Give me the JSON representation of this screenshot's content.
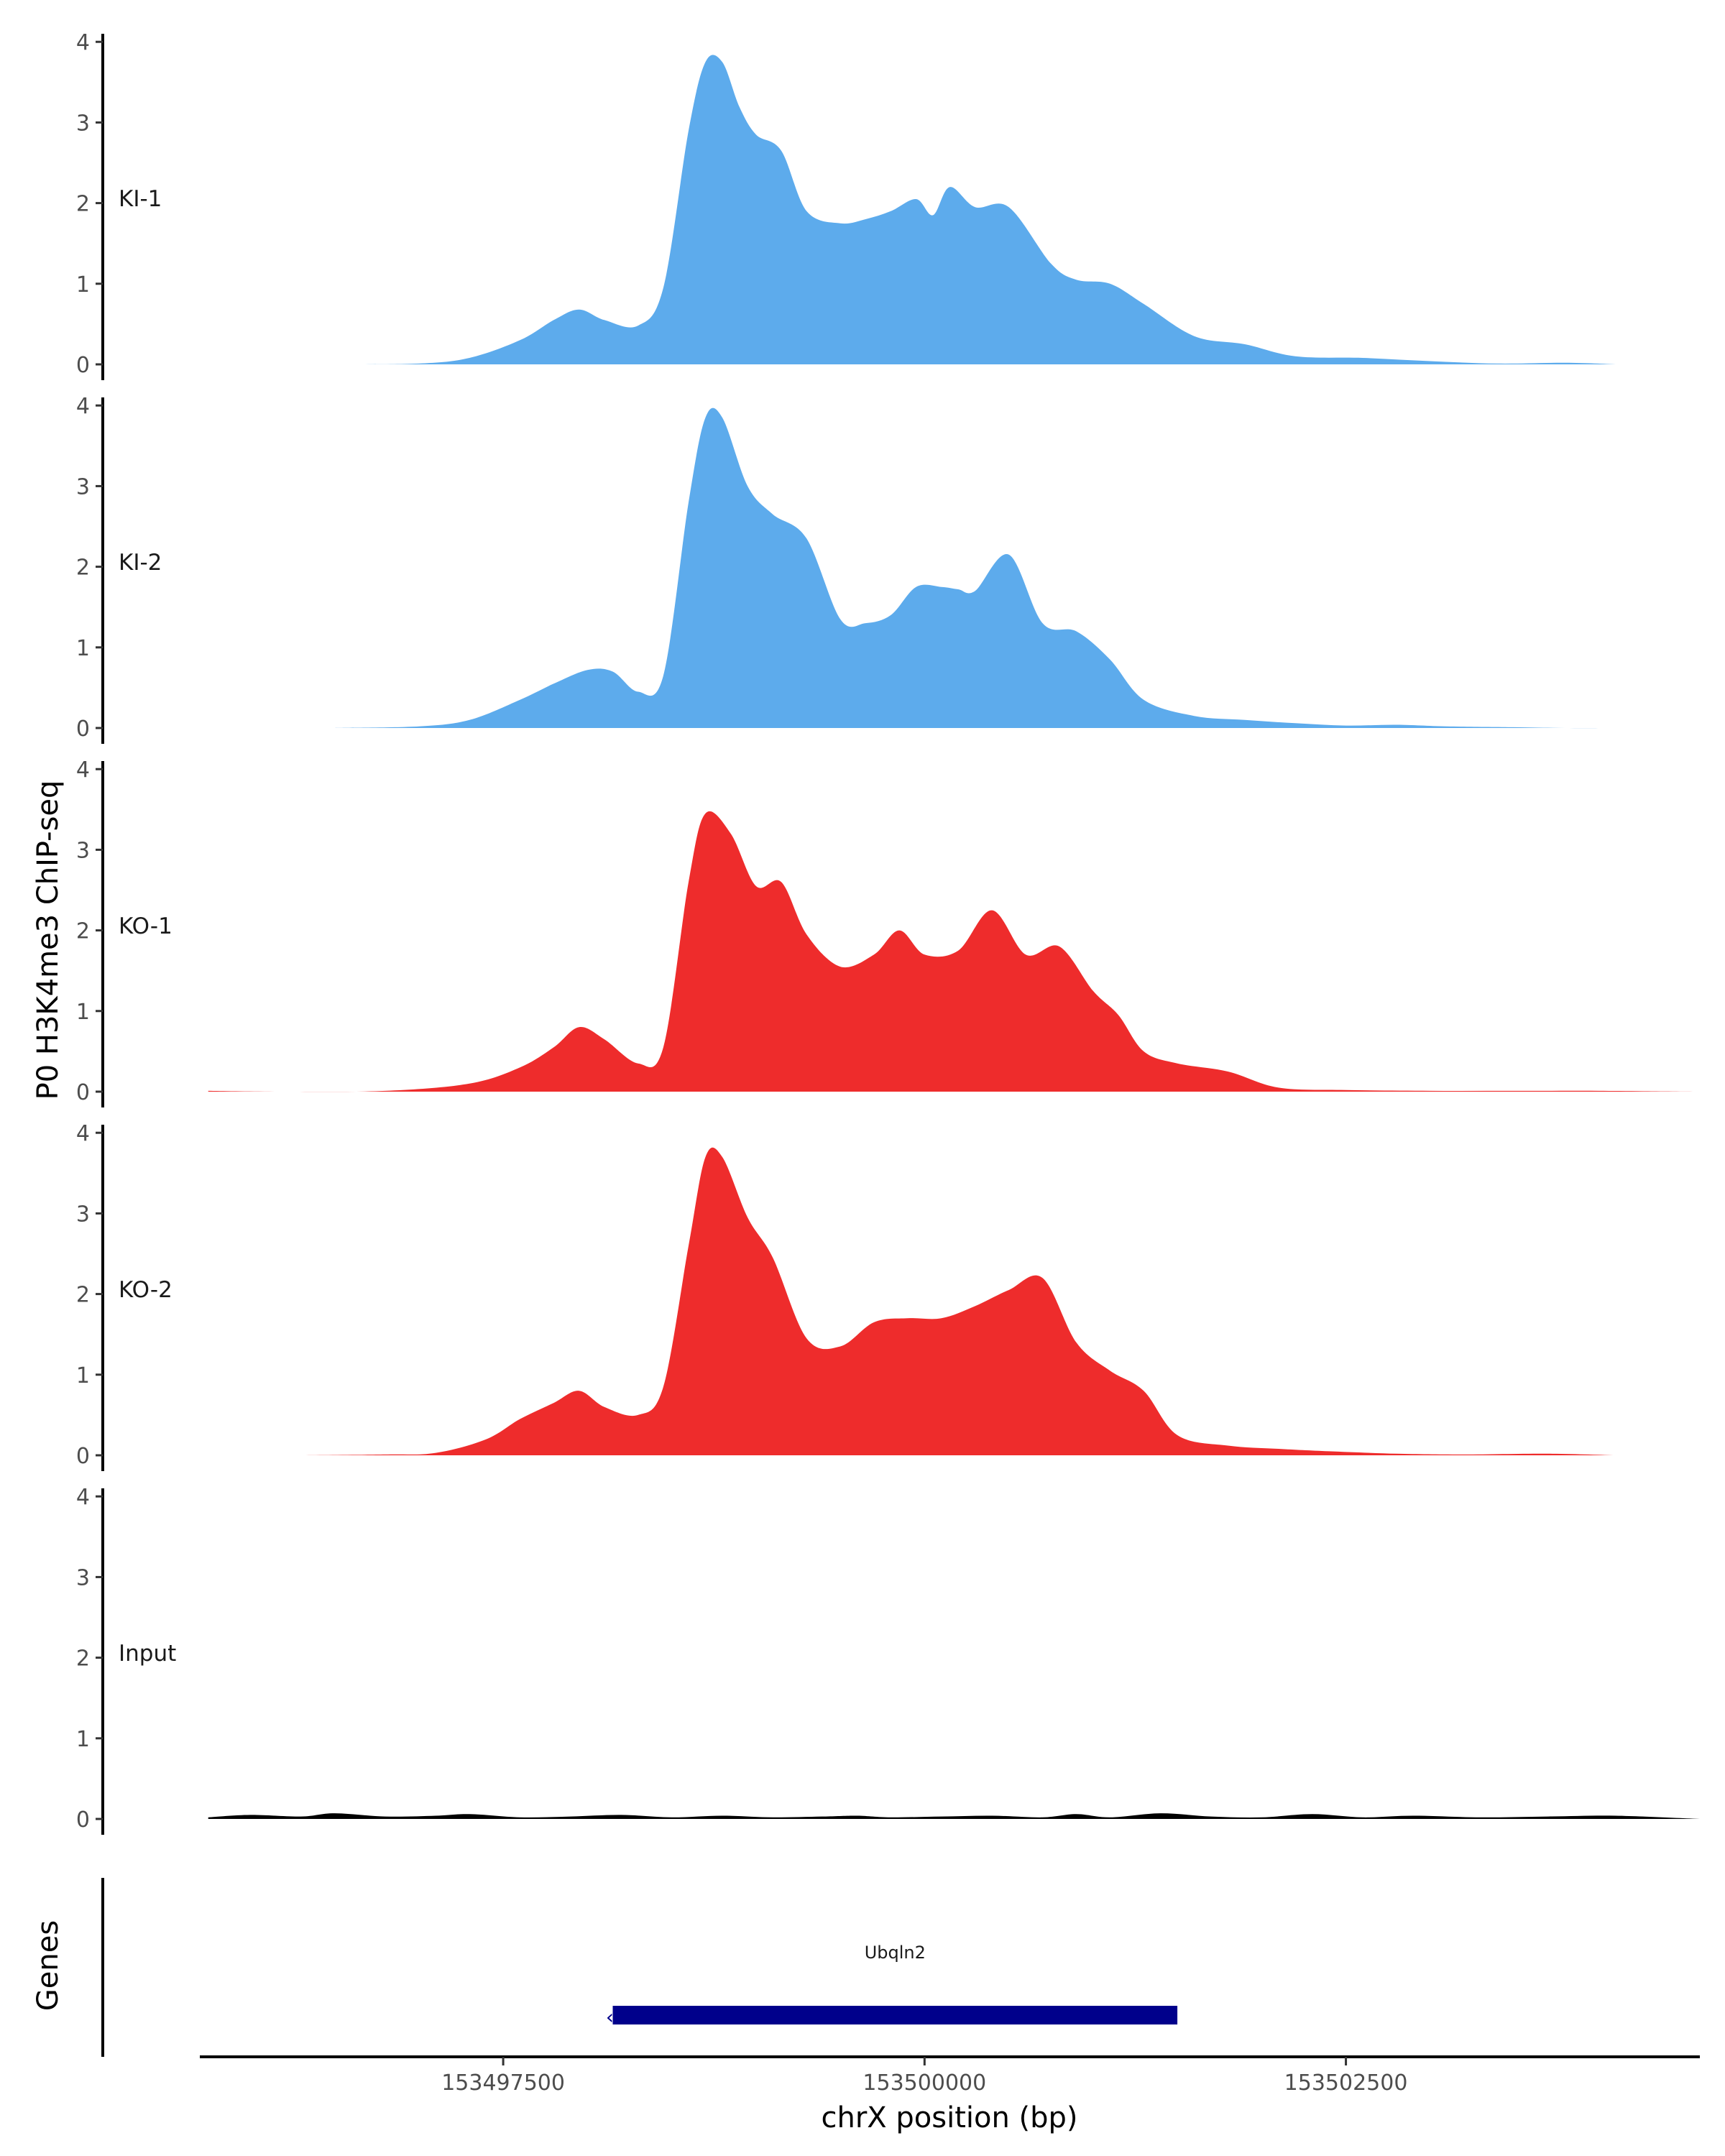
{
  "chart_data": {
    "type": "area",
    "title": "",
    "ylabel": "P0 H3K4me3 ChIP-seq",
    "xlabel": "chrX position (bp)",
    "xlim": [
      153495700,
      153504600
    ],
    "ylim": [
      0,
      4.1
    ],
    "y_ticks": [
      0,
      1,
      2,
      3,
      4
    ],
    "x_ticks": [
      {
        "value": 153497500,
        "label": "153497500"
      },
      {
        "value": 153500000,
        "label": "153500000"
      },
      {
        "value": 153502500,
        "label": "153502500"
      }
    ],
    "colors": {
      "KI": "#5DABEC",
      "KO": "#EE2C2C",
      "Input": "#000000",
      "gene": "#00008B"
    },
    "tracks": [
      {
        "name": "KI-1",
        "color": "#5DABEC",
        "x": [
          153496500,
          153497000,
          153497300,
          153497600,
          153497800,
          153497950,
          153498100,
          153498300,
          153498450,
          153498600,
          153498700,
          153498800,
          153498900,
          153499000,
          153499150,
          153499300,
          153499500,
          153499650,
          153499800,
          153499950,
          153500050,
          153500150,
          153500300,
          153500500,
          153500750,
          153500900,
          153501100,
          153501300,
          153501600,
          153501900,
          153502200,
          153502600,
          153503000,
          153503400,
          153503800,
          153504100
        ],
        "values": [
          0.0,
          0.01,
          0.08,
          0.3,
          0.55,
          0.68,
          0.55,
          0.48,
          0.95,
          2.9,
          3.75,
          3.75,
          3.2,
          2.85,
          2.65,
          1.9,
          1.75,
          1.8,
          1.9,
          2.05,
          1.85,
          2.2,
          1.95,
          1.95,
          1.25,
          1.05,
          1.0,
          0.75,
          0.35,
          0.25,
          0.1,
          0.08,
          0.04,
          0.01,
          0.02,
          0.0
        ]
      },
      {
        "name": "KI-2",
        "color": "#5DABEC",
        "x": [
          153496500,
          153497000,
          153497300,
          153497600,
          153497800,
          153498000,
          153498150,
          153498300,
          153498450,
          153498600,
          153498700,
          153498800,
          153498950,
          153499100,
          153499300,
          153499500,
          153499650,
          153499800,
          153499950,
          153500100,
          153500200,
          153500300,
          153500500,
          153500700,
          153500900,
          153501100,
          153501300,
          153501600,
          153501900,
          153502200,
          153502500,
          153502800,
          153503100,
          153503500,
          153503800,
          153504100
        ],
        "values": [
          0.0,
          0.02,
          0.1,
          0.35,
          0.55,
          0.72,
          0.7,
          0.45,
          0.65,
          2.8,
          3.85,
          3.85,
          3.0,
          2.65,
          2.35,
          1.35,
          1.3,
          1.4,
          1.75,
          1.75,
          1.72,
          1.7,
          2.15,
          1.3,
          1.2,
          0.85,
          0.35,
          0.15,
          0.1,
          0.06,
          0.03,
          0.04,
          0.02,
          0.01,
          0.0,
          0.0
        ]
      },
      {
        "name": "KO-1",
        "color": "#EE2C2C",
        "x": [
          153495750,
          153496200,
          153496800,
          153497300,
          153497600,
          153497800,
          153497950,
          153498100,
          153498300,
          153498450,
          153498600,
          153498700,
          153498850,
          153499000,
          153499150,
          153499300,
          153499500,
          153499700,
          153499850,
          153500000,
          153500200,
          153500400,
          153500600,
          153500800,
          153501000,
          153501150,
          153501300,
          153501500,
          153501800,
          153502100,
          153502500,
          153503000,
          153503500,
          153504000,
          153504600
        ],
        "values": [
          0.01,
          0.0,
          0.01,
          0.1,
          0.3,
          0.55,
          0.8,
          0.65,
          0.35,
          0.55,
          2.6,
          3.45,
          3.2,
          2.55,
          2.6,
          1.95,
          1.55,
          1.7,
          2.0,
          1.7,
          1.75,
          2.25,
          1.7,
          1.8,
          1.25,
          0.95,
          0.5,
          0.35,
          0.25,
          0.05,
          0.02,
          0.01,
          0.01,
          0.01,
          0.0
        ]
      },
      {
        "name": "KO-2",
        "color": "#EE2C2C",
        "x": [
          153496300,
          153496800,
          153497100,
          153497400,
          153497600,
          153497800,
          153497950,
          153498100,
          153498300,
          153498450,
          153498600,
          153498700,
          153498800,
          153498950,
          153499100,
          153499300,
          153499500,
          153499700,
          153499900,
          153500100,
          153500300,
          153500500,
          153500700,
          153500900,
          153501100,
          153501300,
          153501500,
          153501800,
          153502100,
          153502400,
          153502800,
          153503200,
          153503700,
          153504100
        ],
        "values": [
          0.0,
          0.01,
          0.03,
          0.2,
          0.45,
          0.65,
          0.8,
          0.6,
          0.5,
          0.85,
          2.6,
          3.7,
          3.7,
          2.95,
          2.45,
          1.45,
          1.35,
          1.65,
          1.7,
          1.7,
          1.85,
          2.05,
          2.2,
          1.4,
          1.05,
          0.8,
          0.25,
          0.12,
          0.08,
          0.05,
          0.02,
          0.01,
          0.02,
          0.0
        ]
      },
      {
        "name": "Input",
        "color": "#000000",
        "x": [
          153495750,
          153496000,
          153496300,
          153496500,
          153496800,
          153497100,
          153497300,
          153497600,
          153497900,
          153498200,
          153498500,
          153498800,
          153499100,
          153499400,
          153499600,
          153499800,
          153500100,
          153500400,
          153500700,
          153500900,
          153501100,
          153501400,
          153501700,
          153502000,
          153502300,
          153502600,
          153502900,
          153503300,
          153503700,
          153504100,
          153504600
        ],
        "values": [
          0.02,
          0.05,
          0.03,
          0.07,
          0.03,
          0.04,
          0.06,
          0.02,
          0.03,
          0.05,
          0.02,
          0.04,
          0.02,
          0.03,
          0.04,
          0.02,
          0.03,
          0.04,
          0.02,
          0.06,
          0.02,
          0.07,
          0.03,
          0.02,
          0.06,
          0.02,
          0.04,
          0.02,
          0.03,
          0.04,
          0.0
        ]
      }
    ],
    "genes_track": {
      "label": "Genes",
      "genes": [
        {
          "name": "Ubqln2",
          "start": 153498150,
          "end": 153501500,
          "color": "#00008B"
        }
      ]
    }
  }
}
